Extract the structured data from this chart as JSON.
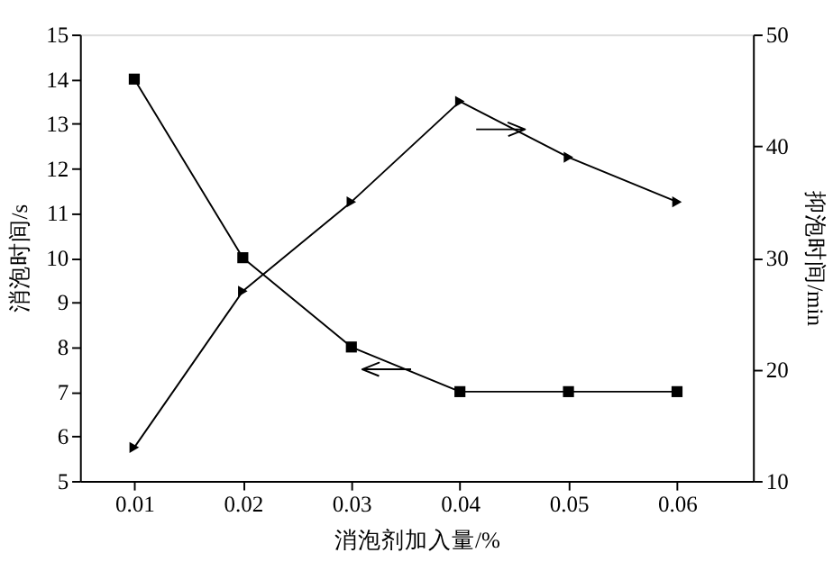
{
  "chart_data": {
    "type": "line",
    "xlabel": "消泡剂加入量/%",
    "ylabel": "消泡时间/s",
    "y2label": "抑泡时间/min",
    "x": [
      0.01,
      0.02,
      0.03,
      0.04,
      0.05,
      0.06
    ],
    "series": [
      {
        "color": "#000000",
        "marker": "square",
        "values": [
          14,
          10,
          8,
          7,
          7,
          7
        ]
      },
      {
        "color": "#000000",
        "marker": "triangle",
        "axis": "y2",
        "values": [
          13,
          27,
          35,
          44,
          39,
          35
        ]
      }
    ],
    "xlim": [
      0.005,
      0.067
    ],
    "xticks": [
      0.01,
      0.02,
      0.03,
      0.04,
      0.05,
      0.06
    ],
    "ylim": [
      5,
      15
    ],
    "yticks": [
      5,
      6,
      7,
      8,
      9,
      10,
      11,
      12,
      13,
      14,
      15
    ],
    "y2lim": [
      10,
      50
    ],
    "y2ticks": [
      10,
      20,
      30,
      40,
      50
    ],
    "grid": false,
    "line_style": "solid"
  }
}
